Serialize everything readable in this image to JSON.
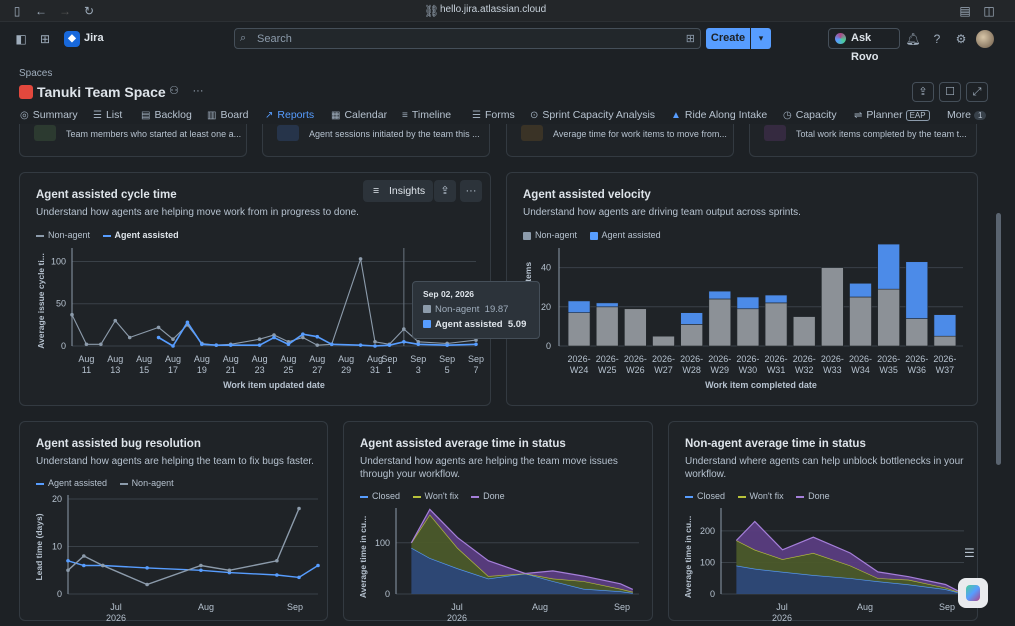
{
  "browser": {
    "url": "hello.jira.atlassian.cloud"
  },
  "app": {
    "name": "Jira",
    "search_placeholder": "Search",
    "create_label": "Create",
    "ask_rovo_label": "Ask Rovo"
  },
  "space": {
    "breadcrumb": "Spaces",
    "title": "Tanuki Team Space"
  },
  "tabs": [
    {
      "label": "Summary"
    },
    {
      "label": "List"
    },
    {
      "label": "Backlog"
    },
    {
      "label": "Board"
    },
    {
      "label": "Reports"
    },
    {
      "label": "Calendar"
    },
    {
      "label": "Timeline"
    },
    {
      "label": "Forms"
    },
    {
      "label": "Sprint Capacity Analysis"
    },
    {
      "label": "Ride Along Intake"
    },
    {
      "label": "Capacity"
    },
    {
      "label": "Planner"
    },
    {
      "label": "More"
    }
  ],
  "tab_badges": {
    "planner": "EAP",
    "more_count": "1"
  },
  "mini_cards": [
    {
      "text": "Team members who started at least one a..."
    },
    {
      "text": "Agent sessions initiated by the team this ..."
    },
    {
      "text": "Average time for work items to move from..."
    },
    {
      "text": "Total work items completed by the team t..."
    }
  ],
  "cycle_time": {
    "title": "Agent assisted cycle time",
    "subtitle": "Understand how agents are helping move work from in progress to done.",
    "insights_label": "Insights",
    "legend": [
      "Non-agent",
      "Agent assisted"
    ],
    "ylabel": "Average issue cycle ti...",
    "xlabel": "Work item updated date",
    "xticks": [
      [
        "Aug",
        "11"
      ],
      [
        "Aug",
        "13"
      ],
      [
        "Aug",
        "15"
      ],
      [
        "Aug",
        "17"
      ],
      [
        "Aug",
        "19"
      ],
      [
        "Aug",
        "21"
      ],
      [
        "Aug",
        "23"
      ],
      [
        "Aug",
        "25"
      ],
      [
        "Aug",
        "27"
      ],
      [
        "Aug",
        "29"
      ],
      [
        "Aug",
        "31"
      ],
      [
        "Sep",
        "1"
      ],
      [
        "Sep",
        "3"
      ],
      [
        "Sep",
        "5"
      ],
      [
        "Sep",
        "7"
      ]
    ],
    "yticks": [
      "0",
      "50",
      "100"
    ],
    "tooltip": {
      "date": "Sep 02, 2026",
      "non_agent_label": "Non-agent",
      "non_agent_value": "19.87",
      "agent_label": "Agent assisted",
      "agent_value": "5.09"
    }
  },
  "velocity": {
    "title": "Agent assisted velocity",
    "subtitle": "Understand how agents are driving team output across sprints.",
    "legend": [
      "Non-agent",
      "Agent assisted"
    ],
    "ylabel": "Items",
    "xlabel": "Work item completed date",
    "yticks": [
      "0",
      "20",
      "40"
    ]
  },
  "bug_resolution": {
    "title": "Agent assisted bug resolution",
    "subtitle": "Understand how agents are helping the team to fix bugs faster.",
    "legend": [
      "Agent assisted",
      "Non-agent"
    ],
    "ylabel": "Lead time (days)",
    "yticks": [
      "0",
      "10",
      "20"
    ],
    "xticks": [
      "Jul",
      "Aug",
      "Sep"
    ],
    "year": "2026"
  },
  "avg_status": {
    "title": "Agent assisted average time in status",
    "subtitle": "Understand how agents are helping the team move issues through your workflow.",
    "legend": [
      "Closed",
      "Won't fix",
      "Done"
    ],
    "ylabel": "Average time in cu...",
    "yticks": [
      "0",
      "100"
    ],
    "xticks": [
      "Jul",
      "Aug",
      "Sep"
    ],
    "year": "2026"
  },
  "nonagent_status": {
    "title": "Non-agent average time in status",
    "subtitle": "Understand where agents can help unblock bottlenecks in your workflow.",
    "legend": [
      "Closed",
      "Won't fix",
      "Done"
    ],
    "ylabel": "Average time in cu...",
    "yticks": [
      "0",
      "100",
      "200"
    ],
    "xticks": [
      "Jul",
      "Aug",
      "Sep"
    ],
    "year": "2026"
  },
  "chart_data": [
    {
      "type": "line",
      "x": [
        "Aug 10",
        "Aug 11",
        "Aug 12",
        "Aug 13",
        "Aug 14",
        "Aug 16",
        "Aug 17",
        "Aug 18",
        "Aug 19",
        "Aug 20",
        "Aug 21",
        "Aug 23",
        "Aug 24",
        "Aug 25",
        "Aug 26",
        "Aug 27",
        "Aug 28",
        "Aug 30",
        "Aug 31",
        "Sep 1",
        "Sep 2",
        "Sep 3",
        "Sep 5",
        "Sep 7"
      ],
      "series": [
        {
          "name": "Non-agent",
          "values": [
            37,
            2,
            2,
            30,
            10,
            22,
            8,
            25,
            3,
            1,
            2,
            8,
            13,
            5,
            10,
            1,
            2,
            103,
            5,
            2,
            20,
            5,
            3,
            7
          ]
        },
        {
          "name": "Agent assisted",
          "values": [
            null,
            null,
            null,
            null,
            null,
            10,
            0,
            28,
            2,
            1,
            1,
            1,
            10,
            2,
            14,
            11,
            2,
            1,
            0,
            1,
            5,
            2,
            1,
            2
          ]
        }
      ],
      "ylabel": "Average issue cycle ti...",
      "xlabel": "Work item updated date",
      "ylim": [
        0,
        110
      ]
    },
    {
      "type": "bar",
      "categories": [
        "2026-W24",
        "2026-W25",
        "2026-W26",
        "2026-W27",
        "2026-W28",
        "2026-W29",
        "2026-W30",
        "2026-W31",
        "2026-W32",
        "2026-W33",
        "2026-W34",
        "2026-W35",
        "2026-W36",
        "2026-W37"
      ],
      "series": [
        {
          "name": "Non-agent",
          "values": [
            17,
            20,
            19,
            5,
            11,
            24,
            19,
            22,
            15,
            40,
            25,
            29,
            14,
            5
          ]
        },
        {
          "name": "Agent assisted",
          "values": [
            6,
            2,
            0,
            0,
            6,
            4,
            6,
            4,
            0,
            0,
            7,
            23,
            29,
            11
          ]
        }
      ],
      "ylabel": "Items",
      "xlabel": "Work item completed date",
      "ylim": [
        0,
        50
      ],
      "stacked": true
    },
    {
      "type": "line",
      "x": [
        "Jun 20",
        "Jun 25",
        "Jul 1",
        "Jul 15",
        "Aug 1",
        "Aug 10",
        "Aug 25",
        "Sep 1",
        "Sep 7"
      ],
      "series": [
        {
          "name": "Agent assisted",
          "values": [
            7,
            6,
            6,
            5.5,
            5,
            4.5,
            4,
            3.5,
            6
          ]
        },
        {
          "name": "Non-agent",
          "values": [
            5,
            8,
            6,
            2,
            6,
            5,
            7,
            18,
            null
          ]
        }
      ],
      "ylabel": "Lead time (days)",
      "ylim": [
        0,
        20
      ]
    },
    {
      "type": "area",
      "x": [
        "Jun 25",
        "Jul 1",
        "Jul 10",
        "Jul 20",
        "Aug 1",
        "Aug 10",
        "Aug 20",
        "Sep 1",
        "Sep 5"
      ],
      "series": [
        {
          "name": "Closed",
          "values": [
            90,
            70,
            50,
            30,
            40,
            25,
            10,
            5,
            2
          ]
        },
        {
          "name": "Won't fix",
          "values": [
            10,
            85,
            40,
            5,
            0,
            5,
            15,
            5,
            2
          ]
        },
        {
          "name": "Done",
          "values": [
            0,
            10,
            20,
            30,
            0,
            15,
            10,
            10,
            5
          ]
        }
      ],
      "ylabel": "Average time in cu...",
      "ylim": [
        0,
        160
      ]
    },
    {
      "type": "area",
      "x": [
        "Jun 25",
        "Jul 1",
        "Jul 10",
        "Jul 20",
        "Aug 1",
        "Aug 10",
        "Aug 20",
        "Sep 1",
        "Sep 5"
      ],
      "series": [
        {
          "name": "Closed",
          "values": [
            90,
            80,
            70,
            60,
            50,
            40,
            30,
            15,
            5
          ]
        },
        {
          "name": "Won't fix",
          "values": [
            80,
            60,
            40,
            70,
            40,
            10,
            15,
            5,
            2
          ]
        },
        {
          "name": "Done",
          "values": [
            0,
            90,
            30,
            50,
            40,
            20,
            10,
            10,
            3
          ]
        }
      ],
      "ylabel": "Average time in cu...",
      "ylim": [
        0,
        260
      ]
    }
  ]
}
